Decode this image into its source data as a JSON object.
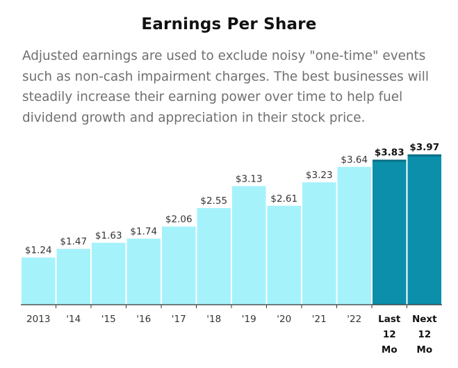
{
  "title": "Earnings Per Share",
  "subtitle": "Adjusted earnings are used to exclude noisy \"one-time\" events such as non-cash impairment charges. The best businesses will steadily increase their earning power over time to help fuel dividend growth and appreciation in their stock price.",
  "colors": {
    "bar": "#a6f2fb",
    "bar_highlight": "#0c8fab",
    "axis": "#333333"
  },
  "chart_data": {
    "type": "bar",
    "title": "Earnings Per Share",
    "xlabel": "",
    "ylabel": "",
    "ylim": [
      0,
      4.0
    ],
    "categories": [
      {
        "lines": [
          "2013"
        ],
        "highlight": false
      },
      {
        "lines": [
          "'14"
        ],
        "highlight": false
      },
      {
        "lines": [
          "'15"
        ],
        "highlight": false
      },
      {
        "lines": [
          "'16"
        ],
        "highlight": false
      },
      {
        "lines": [
          "'17"
        ],
        "highlight": false
      },
      {
        "lines": [
          "'18"
        ],
        "highlight": false
      },
      {
        "lines": [
          "'19"
        ],
        "highlight": false
      },
      {
        "lines": [
          "'20"
        ],
        "highlight": false
      },
      {
        "lines": [
          "'21"
        ],
        "highlight": false
      },
      {
        "lines": [
          "'22"
        ],
        "highlight": false
      },
      {
        "lines": [
          "Last",
          "12",
          "Mo"
        ],
        "highlight": true
      },
      {
        "lines": [
          "Next",
          "12",
          "Mo"
        ],
        "highlight": true
      }
    ],
    "values": [
      1.24,
      1.47,
      1.63,
      1.74,
      2.06,
      2.55,
      3.13,
      2.61,
      3.23,
      3.64,
      3.83,
      3.97
    ],
    "labels": [
      "$1.24",
      "$1.47",
      "$1.63",
      "$1.74",
      "$2.06",
      "$2.55",
      "$3.13",
      "$2.61",
      "$3.23",
      "$3.64",
      "$3.83",
      "$3.97"
    ]
  }
}
